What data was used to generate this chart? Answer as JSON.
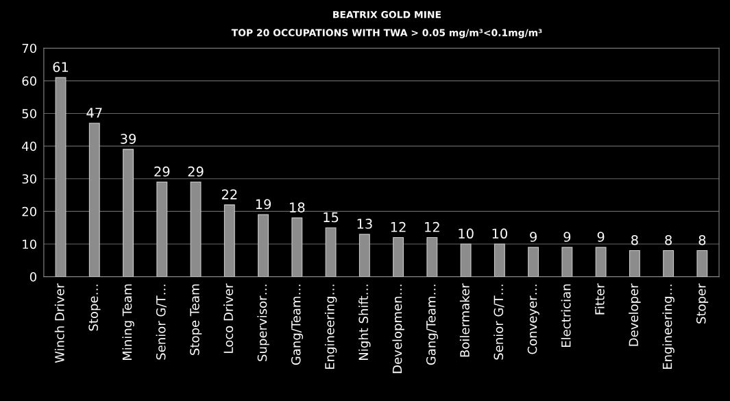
{
  "chart_data": {
    "type": "bar",
    "title": "BEATRIX GOLD MINE",
    "subtitle": "TOP 20 OCCUPATIONS WITH TWA > 0.05 mg/m³<0.1mg/m³",
    "categories": [
      "Winch Driver",
      "Stope…",
      "Mining Team",
      "Senior G/T…",
      "Stope Team",
      "Loco Driver",
      "Supervisor…",
      "Gang/Team…",
      "Engineering…",
      "Night Shift…",
      "Developmen…",
      "Gang/Team…",
      "Boilermaker",
      "Senior G/T…",
      "Conveyer…",
      "Electrician",
      "Fitter",
      "Developer",
      "Engineering…",
      "Stoper"
    ],
    "values": [
      61,
      47,
      39,
      29,
      29,
      22,
      19,
      18,
      15,
      13,
      12,
      12,
      10,
      10,
      9,
      9,
      9,
      8,
      8,
      8
    ],
    "color": "#8c8c8c",
    "ylim": [
      0,
      70
    ],
    "yticks": [
      0,
      10,
      20,
      30,
      40,
      50,
      60,
      70
    ],
    "grid": "y",
    "data_labels": true
  }
}
